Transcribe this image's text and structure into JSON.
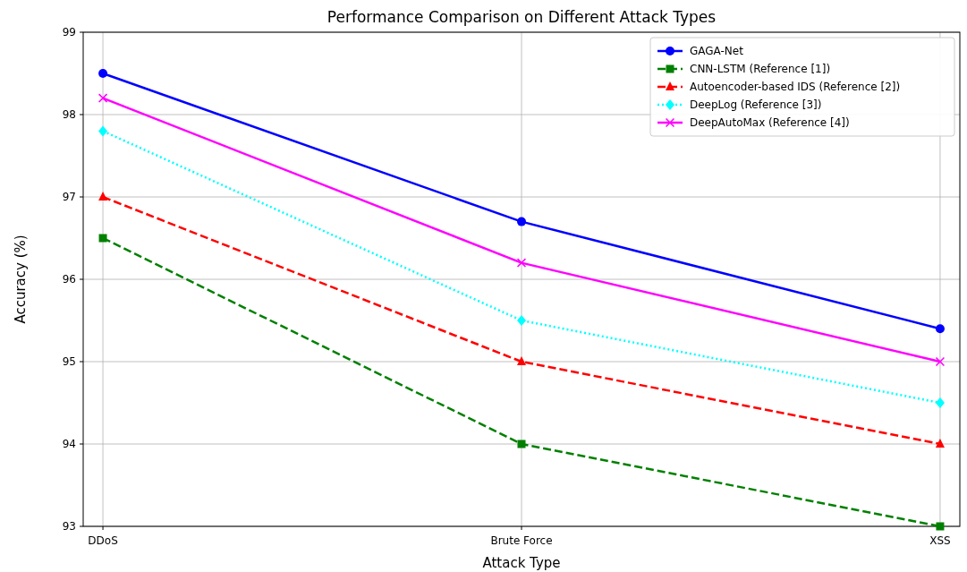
{
  "chart_data": {
    "type": "line",
    "title": "Performance Comparison on Different Attack Types",
    "xlabel": "Attack Type",
    "ylabel": "Accuracy (%)",
    "categories": [
      "DDoS",
      "Brute Force",
      "XSS"
    ],
    "series": [
      {
        "name": "GAGA-Net",
        "color": "#0000ff",
        "values": [
          98.5,
          96.7,
          95.4
        ],
        "marker": "circle",
        "line_style": "solid"
      },
      {
        "name": "CNN-LSTM (Reference [1])",
        "color": "#008000",
        "values": [
          96.5,
          94.0,
          93.0
        ],
        "marker": "square",
        "line_style": "dashed"
      },
      {
        "name": "Autoencoder-based IDS (Reference [2])",
        "color": "#ff0000",
        "values": [
          97.0,
          95.0,
          94.0
        ],
        "marker": "triangle",
        "line_style": "dashed"
      },
      {
        "name": "DeepLog (Reference [3])",
        "color": "#00ffff",
        "values": [
          97.8,
          95.5,
          94.5
        ],
        "marker": "diamond",
        "line_style": "dotted"
      },
      {
        "name": "DeepAutoMax (Reference [4])",
        "color": "#ff00ff",
        "values": [
          98.2,
          96.2,
          95.0
        ],
        "marker": "cross",
        "line_style": "solid"
      }
    ],
    "ylim": [
      93,
      99
    ],
    "yticks": [
      93,
      94,
      95,
      96,
      97,
      98,
      99
    ],
    "grid": true,
    "legend": "top right"
  }
}
